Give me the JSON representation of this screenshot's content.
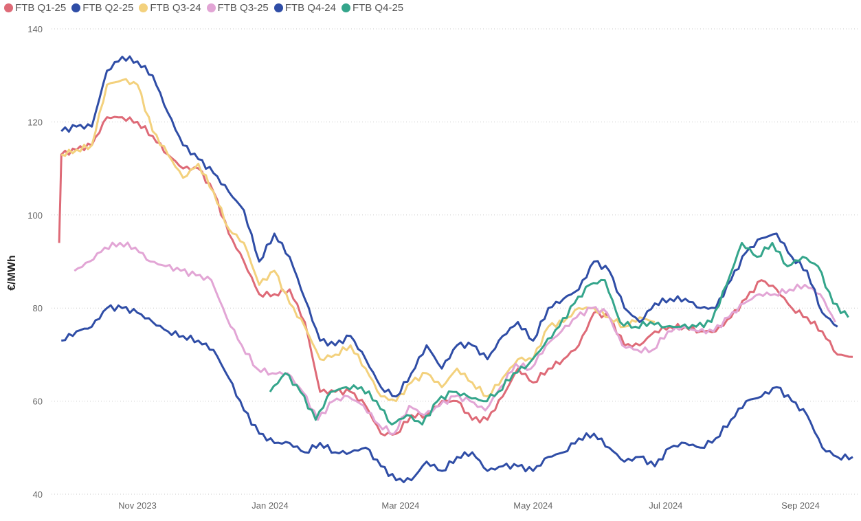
{
  "chart_data": {
    "type": "line",
    "title": "",
    "xlabel": "",
    "ylabel": "€/MWh",
    "ylim": [
      40,
      140
    ],
    "yticks": [
      "40",
      "60",
      "80",
      "100",
      "120",
      "140"
    ],
    "xticks": [
      {
        "date": "2023-11-01",
        "label": "Nov 2023"
      },
      {
        "date": "2024-01-01",
        "label": "Jan 2024"
      },
      {
        "date": "2024-03-01",
        "label": "Mar 2024"
      },
      {
        "date": "2024-05-01",
        "label": "May 2024"
      },
      {
        "date": "2024-07-01",
        "label": "Jul 2024"
      },
      {
        "date": "2024-09-01",
        "label": "Sep 2024"
      }
    ],
    "grid": "horizontal dotted",
    "legend_position": "top-left",
    "series": [
      {
        "name": "FTB Q1-25",
        "color": "#DE6A77",
        "start": "2023-09-26",
        "step_days": 7,
        "first_step_days": 1,
        "values": [
          94,
          113,
          114,
          115,
          121,
          121,
          120,
          117,
          113,
          110,
          110,
          105,
          96,
          90,
          83,
          83,
          84,
          77,
          62,
          62,
          62,
          59,
          53,
          53,
          57,
          57,
          60,
          60,
          56,
          56,
          61,
          67,
          64,
          67,
          69,
          72,
          79,
          78,
          72,
          72,
          75,
          76,
          76,
          75,
          75,
          78,
          82,
          86,
          84,
          80,
          78,
          75,
          70,
          69.5
        ]
      },
      {
        "name": "FTB Q2-25",
        "color": "#2F4DA6",
        "start": "2023-09-27",
        "step_days": 7,
        "values": [
          73,
          75,
          76,
          80,
          80,
          79,
          77,
          75,
          74,
          73,
          71,
          65,
          58,
          53,
          51,
          51,
          49,
          51,
          49,
          49,
          50,
          46,
          43,
          43,
          47,
          45,
          48,
          49,
          45,
          46,
          46,
          45,
          48,
          49,
          52,
          53,
          50,
          47,
          48,
          46,
          50,
          51,
          50,
          52,
          56,
          60,
          61,
          63,
          60,
          57,
          50,
          48,
          48
        ]
      },
      {
        "name": "FTB Q3-24",
        "color": "#F3D17D",
        "start": "2023-09-27",
        "step_days": 7,
        "values": [
          113,
          114,
          115,
          128,
          129,
          128,
          118,
          113,
          108,
          111,
          105,
          97,
          94,
          85,
          88,
          81,
          76,
          69,
          70,
          72,
          67,
          61,
          60,
          64,
          66,
          63,
          67,
          64,
          61,
          65,
          69,
          69,
          76,
          77,
          80,
          80,
          78,
          76,
          78,
          77
        ]
      },
      {
        "name": "FTB Q3-25",
        "color": "#E2A5D5",
        "start": "2023-10-03",
        "step_days": 7,
        "values": [
          88,
          90,
          93,
          94,
          93,
          90,
          89,
          88,
          87,
          86,
          78,
          72,
          67,
          66,
          66,
          62,
          56,
          60,
          61,
          59,
          55,
          53,
          59,
          57,
          59,
          61,
          60,
          58,
          63,
          68,
          67,
          72,
          75,
          78,
          80,
          79,
          72,
          71,
          71,
          75,
          76,
          75,
          75,
          78,
          81,
          83,
          83,
          84,
          85,
          83,
          77
        ]
      },
      {
        "name": "FTB Q4-24",
        "color": "#2F4DA6",
        "start": "2023-09-27",
        "step_days": 7,
        "values": [
          118,
          119,
          119,
          131,
          134,
          133,
          130,
          122,
          115,
          112,
          109,
          105,
          101,
          90,
          96,
          91,
          82,
          73,
          72,
          74,
          69,
          63,
          61,
          66,
          72,
          67,
          72,
          72,
          69,
          74,
          77,
          73,
          80,
          82,
          84,
          90,
          88,
          80,
          77,
          81,
          82,
          82,
          80,
          80,
          86,
          92,
          95,
          96,
          91,
          88,
          79,
          76
        ]
      },
      {
        "name": "FTB Q4-25",
        "color": "#34A58B",
        "start": "2024-01-01",
        "step_days": 7,
        "values": [
          62,
          66,
          62,
          56,
          62,
          63,
          63,
          60,
          55,
          57,
          55,
          60,
          62,
          61,
          60,
          62,
          66,
          68,
          72,
          76,
          81,
          85,
          86,
          77,
          76,
          77,
          76,
          76,
          76,
          77,
          85,
          94,
          91,
          94,
          89,
          91,
          89,
          81,
          78
        ]
      }
    ]
  }
}
